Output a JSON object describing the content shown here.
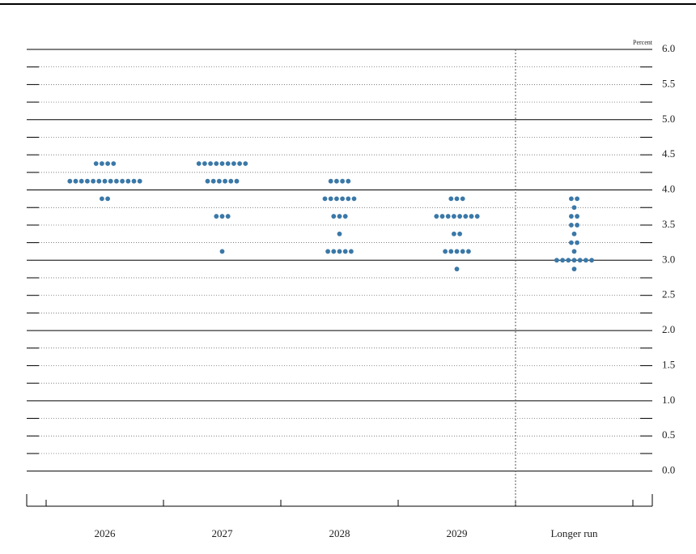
{
  "chart_data": {
    "type": "dotplot",
    "y_unit_label": "Percent",
    "categories": [
      "2026",
      "2027",
      "2028",
      "2029",
      "Longer run"
    ],
    "color": "#3a78a8",
    "ylim": [
      -0.5,
      6
    ],
    "yticks": [
      {
        "value": 0,
        "label": "0.0"
      },
      0.5,
      {
        "value": 1,
        "label": "1.0"
      },
      1.5,
      {
        "value": 2,
        "label": "2.0"
      },
      2.5,
      {
        "value": 3,
        "label": "3.0"
      },
      3.5,
      {
        "value": 4,
        "label": "4.0"
      },
      4.5,
      {
        "value": 5,
        "label": "5.0"
      },
      5.5,
      {
        "value": 6,
        "label": "6.0"
      }
    ],
    "minor_yticks": [
      0.25,
      0.75,
      1.25,
      1.75,
      2.25,
      2.75,
      3.25,
      3.75,
      4.25,
      4.75,
      5.25,
      5.75
    ],
    "dots": [
      [
        {
          "rate": 4.375,
          "count": 4
        },
        {
          "rate": 4.125,
          "count": 13
        },
        {
          "rate": 3.875,
          "count": 2
        }
      ],
      [
        {
          "rate": 4.375,
          "count": 9
        },
        {
          "rate": 4.125,
          "count": 6
        },
        {
          "rate": 3.625,
          "count": 3
        },
        {
          "rate": 3.125,
          "count": 1
        }
      ],
      [
        {
          "rate": 4.125,
          "count": 4
        },
        {
          "rate": 3.875,
          "count": 6
        },
        {
          "rate": 3.625,
          "count": 3
        },
        {
          "rate": 3.375,
          "count": 1
        },
        {
          "rate": 3.125,
          "count": 5
        }
      ],
      [
        {
          "rate": 3.875,
          "count": 3
        },
        {
          "rate": 3.625,
          "count": 8
        },
        {
          "rate": 3.375,
          "count": 2
        },
        {
          "rate": 3.125,
          "count": 5
        },
        {
          "rate": 2.875,
          "count": 1
        }
      ],
      [
        {
          "rate": 3.875,
          "count": 2
        },
        {
          "rate": 3.75,
          "count": 1
        },
        {
          "rate": 3.625,
          "count": 2
        },
        {
          "rate": 3.5,
          "count": 2
        },
        {
          "rate": 3.375,
          "count": 1
        },
        {
          "rate": 3.25,
          "count": 2
        },
        {
          "rate": 3.125,
          "count": 1
        },
        {
          "rate": 3.0,
          "count": 7
        },
        {
          "rate": 2.875,
          "count": 1
        }
      ]
    ]
  }
}
